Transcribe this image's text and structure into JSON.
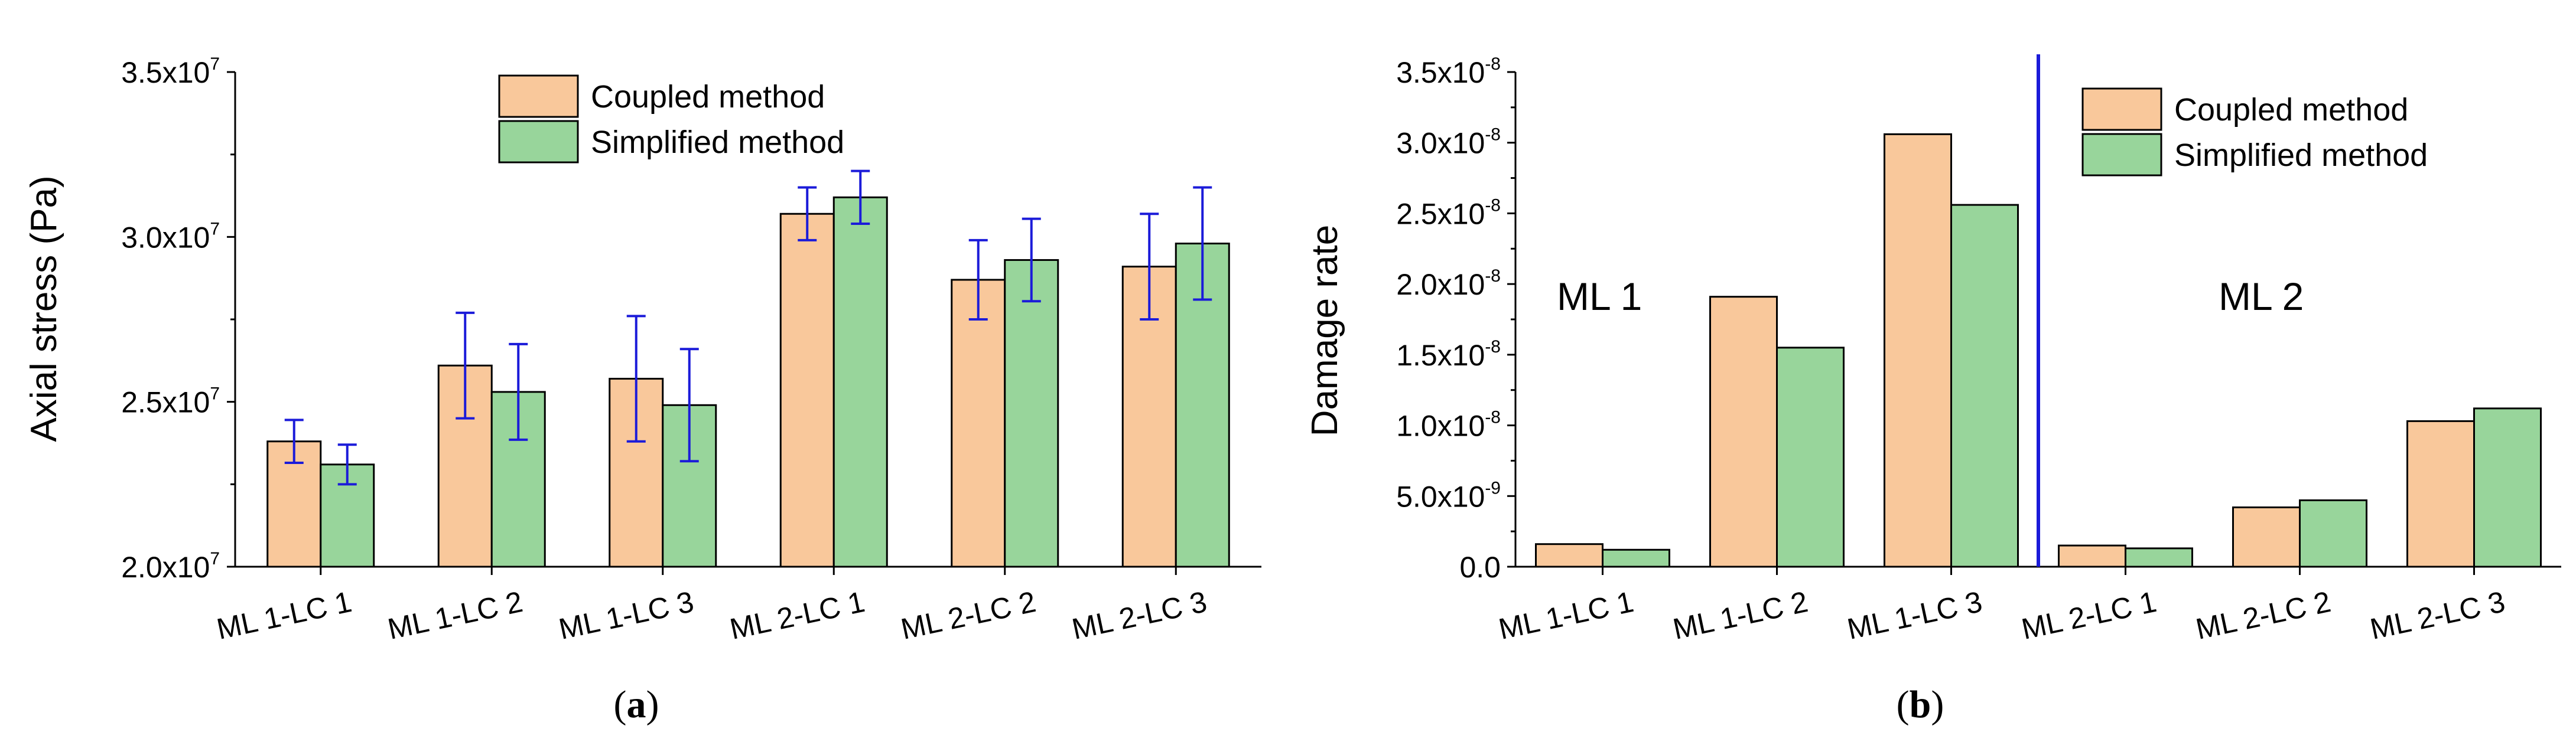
{
  "colors": {
    "coupled": "#f9c89b",
    "simplified": "#98d59b",
    "errorbar": "#1b1bd9",
    "divider": "#1b1bd9",
    "axis": "#000000"
  },
  "chart_data": [
    {
      "type": "bar",
      "panel": "a",
      "caption_prefix": "(",
      "caption_letter": "a",
      "caption_suffix": ")",
      "ylabel": "Axial stress (Pa)",
      "ylim": [
        20000000,
        35000000
      ],
      "yticks": [
        {
          "value": 20000000,
          "mantissa": "2.0x10",
          "exponent": "7"
        },
        {
          "value": 25000000,
          "mantissa": "2.5x10",
          "exponent": "7"
        },
        {
          "value": 30000000,
          "mantissa": "3.0x10",
          "exponent": "7"
        },
        {
          "value": 35000000,
          "mantissa": "3.5x10",
          "exponent": "7"
        }
      ],
      "categories": [
        "ML 1-LC 1",
        "ML 1-LC 2",
        "ML 1-LC 3",
        "ML 2-LC 1",
        "ML 2-LC 2",
        "ML 2-LC 3"
      ],
      "series": [
        {
          "name": "Coupled method",
          "color_key": "coupled",
          "values": [
            23800000,
            26100000,
            25700000,
            30700000,
            28700000,
            29100000
          ],
          "errors": [
            650000,
            1600000,
            1900000,
            800000,
            1200000,
            1600000
          ]
        },
        {
          "name": "Simplified method",
          "color_key": "simplified",
          "values": [
            23100000,
            25300000,
            24900000,
            31200000,
            29300000,
            29800000
          ],
          "errors": [
            600000,
            1450000,
            1700000,
            800000,
            1250000,
            1700000
          ]
        }
      ],
      "legend_position": "top-center"
    },
    {
      "type": "bar",
      "panel": "b",
      "caption_prefix": "(",
      "caption_letter": "b",
      "caption_suffix": ")",
      "ylabel": "Damage rate",
      "ylim": [
        0,
        3.5e-08
      ],
      "yticks": [
        {
          "value": 0,
          "mantissa": "0.0",
          "exponent": ""
        },
        {
          "value": 5e-09,
          "mantissa": "5.0x10",
          "exponent": "-9"
        },
        {
          "value": 1e-08,
          "mantissa": "1.0x10",
          "exponent": "-8"
        },
        {
          "value": 1.5e-08,
          "mantissa": "1.5x10",
          "exponent": "-8"
        },
        {
          "value": 2e-08,
          "mantissa": "2.0x10",
          "exponent": "-8"
        },
        {
          "value": 2.5e-08,
          "mantissa": "2.5x10",
          "exponent": "-8"
        },
        {
          "value": 3e-08,
          "mantissa": "3.0x10",
          "exponent": "-8"
        },
        {
          "value": 3.5e-08,
          "mantissa": "3.5x10",
          "exponent": "-8"
        }
      ],
      "categories": [
        "ML 1-LC 1",
        "ML 1-LC 2",
        "ML 1-LC 3",
        "ML 2-LC 1",
        "ML 2-LC 2",
        "ML 2-LC 3"
      ],
      "series": [
        {
          "name": "Coupled method",
          "color_key": "coupled",
          "values": [
            1.6e-09,
            1.91e-08,
            3.06e-08,
            1.5e-09,
            4.2e-09,
            1.03e-08
          ]
        },
        {
          "name": "Simplified method",
          "color_key": "simplified",
          "values": [
            1.2e-09,
            1.55e-08,
            2.56e-08,
            1.3e-09,
            4.7e-09,
            1.12e-08
          ]
        }
      ],
      "group_labels": [
        "ML 1",
        "ML 2"
      ],
      "legend_position": "top-right"
    }
  ]
}
